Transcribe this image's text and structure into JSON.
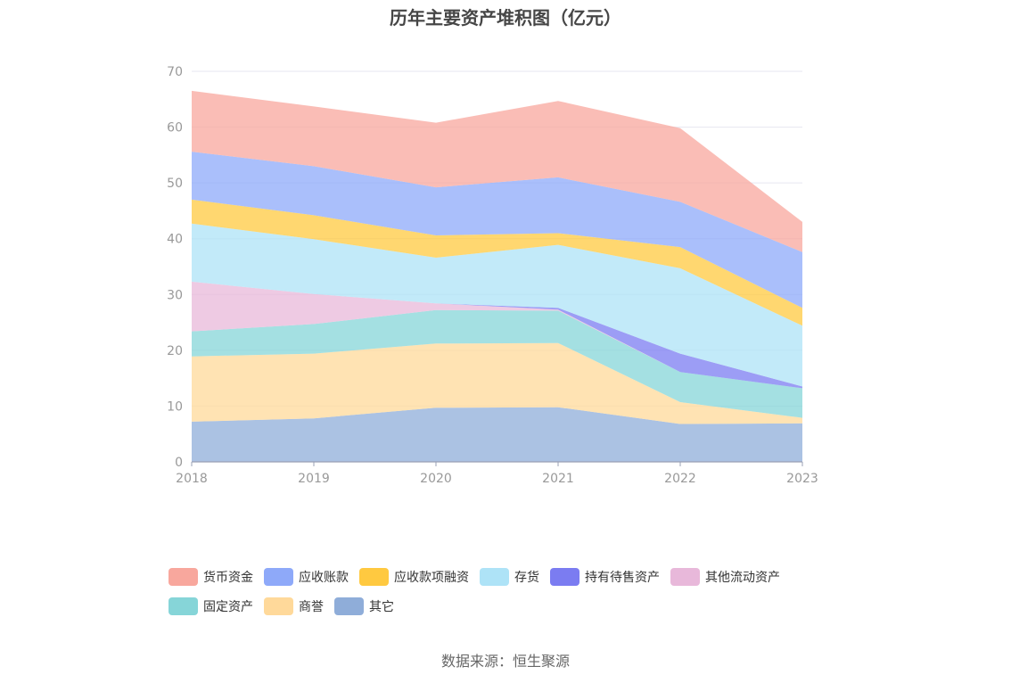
{
  "chart_data": {
    "type": "area",
    "stacked": true,
    "title": "历年主要资产堆积图（亿元）",
    "categories": [
      "2018",
      "2019",
      "2020",
      "2021",
      "2022",
      "2023"
    ],
    "ylim": [
      0,
      70
    ],
    "yticks": [
      0,
      10,
      20,
      30,
      40,
      50,
      60,
      70
    ],
    "grid": true,
    "legend_position": "bottom",
    "series": [
      {
        "name": "其它",
        "color": "#8fadd9",
        "values": [
          7.2,
          7.8,
          9.7,
          9.8,
          6.8,
          6.9
        ]
      },
      {
        "name": "商誉",
        "color": "#ffd99a",
        "values": [
          11.7,
          11.6,
          11.5,
          11.5,
          3.9,
          1.0
        ]
      },
      {
        "name": "固定资产",
        "color": "#86d5d8",
        "values": [
          4.5,
          5.3,
          6.0,
          5.8,
          5.4,
          5.3
        ]
      },
      {
        "name": "其他流动资产",
        "color": "#e8b8da",
        "values": [
          8.9,
          5.4,
          1.2,
          0.2,
          0.0,
          0.0
        ]
      },
      {
        "name": "持有待售资产",
        "color": "#7b7cf1",
        "values": [
          0.0,
          0.0,
          0.0,
          0.3,
          3.3,
          0.3
        ]
      },
      {
        "name": "存货",
        "color": "#aee3f7",
        "values": [
          10.4,
          9.8,
          8.2,
          11.3,
          15.3,
          10.9
        ]
      },
      {
        "name": "应收款项融资",
        "color": "#ffc940",
        "values": [
          4.3,
          4.3,
          4.0,
          2.1,
          3.8,
          3.2
        ]
      },
      {
        "name": "应收账款",
        "color": "#8ea9f9",
        "values": [
          8.6,
          8.8,
          8.6,
          10.0,
          8.1,
          10.0
        ]
      },
      {
        "name": "货币资金",
        "color": "#f8a79d",
        "values": [
          10.9,
          10.7,
          11.6,
          13.7,
          13.2,
          5.4
        ]
      }
    ]
  },
  "legend": {
    "row1": [
      {
        "label": "货币资金",
        "color": "#f8a79d"
      },
      {
        "label": "应收账款",
        "color": "#8ea9f9"
      },
      {
        "label": "应收款项融资",
        "color": "#ffc940"
      },
      {
        "label": "存货",
        "color": "#aee3f7"
      },
      {
        "label": "持有待售资产",
        "color": "#7b7cf1"
      },
      {
        "label": "其他流动资产",
        "color": "#e8b8da"
      }
    ],
    "row2": [
      {
        "label": "固定资产",
        "color": "#86d5d8"
      },
      {
        "label": "商誉",
        "color": "#ffd99a"
      },
      {
        "label": "其它",
        "color": "#8fadd9"
      }
    ]
  },
  "source": "数据来源：恒生聚源"
}
